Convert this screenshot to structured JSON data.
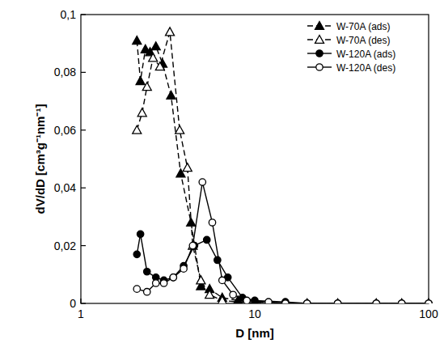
{
  "chart_data": {
    "type": "line",
    "x_label": "D [nm]",
    "y_label": "dV/dD [cm³g⁻¹nm⁻¹]",
    "log": "x",
    "grid": false,
    "legend": "top-right",
    "xlim": [
      1,
      100
    ],
    "xticks": [
      1,
      10,
      100
    ],
    "ylim": [
      0,
      0.1
    ],
    "yticks": [
      0,
      {
        "value": 0.02,
        "label": "0,02"
      },
      {
        "value": 0.04,
        "label": "0,04"
      },
      {
        "value": 0.06,
        "label": "0,06"
      },
      {
        "value": 0.08,
        "label": "0,08"
      },
      {
        "value": 0.1,
        "label": "0,1"
      }
    ],
    "series": [
      {
        "name": "W-70A (ads)",
        "color": "#000000",
        "marker": "triangle-filled",
        "line_style": "dashed",
        "x": [
          2.1,
          2.2,
          2.35,
          2.5,
          2.7,
          2.95,
          3.3,
          3.75,
          4.3,
          4.9,
          5.5,
          6.5,
          8,
          10,
          15,
          20,
          30,
          50,
          70,
          100
        ],
        "values": [
          0.091,
          0.077,
          0.088,
          0.087,
          0.089,
          0.083,
          0.072,
          0.045,
          0.028,
          0.006,
          0.005,
          0.002,
          0.001,
          0.0005,
          0,
          0,
          0,
          0,
          0,
          0
        ]
      },
      {
        "name": "W-70A (des)",
        "color": "#000000",
        "marker": "triangle-open",
        "line_style": "dashed",
        "x": [
          2.1,
          2.25,
          2.4,
          2.6,
          2.85,
          3.25,
          3.7,
          4.1,
          4.4,
          4.9,
          5.5,
          6.5,
          10,
          15,
          20,
          30,
          50,
          70,
          100
        ],
        "values": [
          0.06,
          0.066,
          0.075,
          0.085,
          0.082,
          0.094,
          0.06,
          0.047,
          0.02,
          0.008,
          0.003,
          0.001,
          0,
          0,
          0,
          0,
          0,
          0,
          0
        ]
      },
      {
        "name": "W-120A (ads)",
        "color": "#000000",
        "marker": "circle-filled",
        "line_style": "solid",
        "x": [
          2.1,
          2.2,
          2.4,
          2.7,
          3.0,
          3.4,
          3.9,
          4.5,
          5.3,
          6.1,
          7,
          8.5,
          10,
          15,
          20,
          30,
          50,
          70,
          100
        ],
        "values": [
          0.017,
          0.024,
          0.011,
          0.009,
          0.008,
          0.009,
          0.013,
          0.02,
          0.022,
          0.015,
          0.009,
          0.002,
          0.001,
          0.0005,
          0,
          0,
          0,
          0,
          0
        ]
      },
      {
        "name": "W-120A (des)",
        "color": "#000000",
        "marker": "circle-open",
        "line_style": "solid",
        "x": [
          2.1,
          2.4,
          2.7,
          3.0,
          3.4,
          3.9,
          4.4,
          5.0,
          5.7,
          6.5,
          7.5,
          9,
          12,
          15,
          20,
          30,
          50,
          70,
          100
        ],
        "values": [
          0.005,
          0.004,
          0.007,
          0.007,
          0.009,
          0.012,
          0.02,
          0.042,
          0.028,
          0.008,
          0.003,
          0.001,
          0.0005,
          0,
          0,
          0,
          0,
          0,
          0
        ]
      }
    ]
  }
}
